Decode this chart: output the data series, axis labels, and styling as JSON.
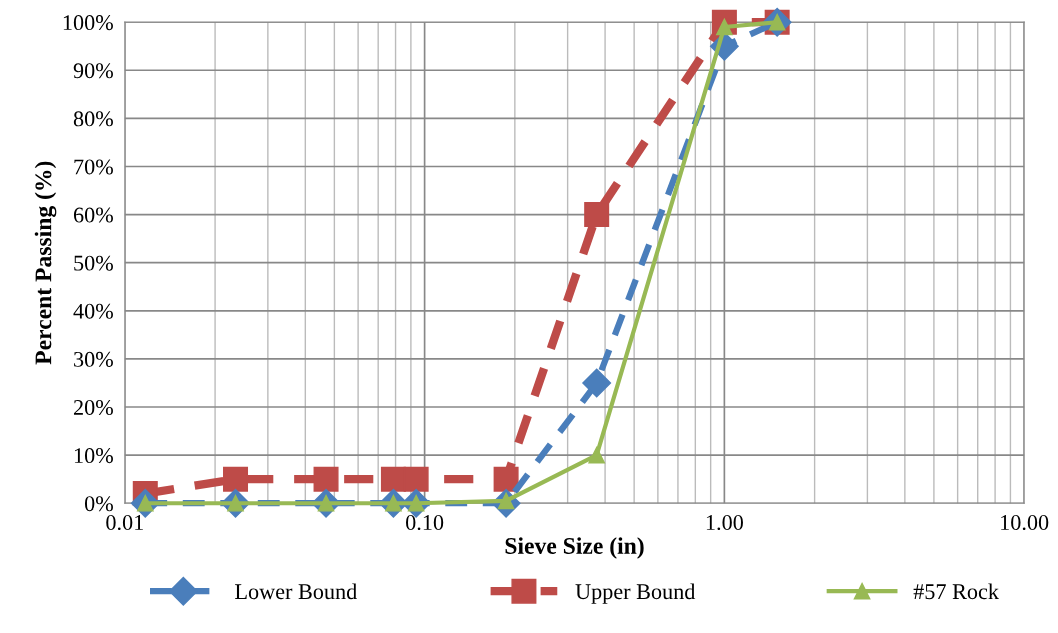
{
  "chart_data": {
    "type": "line",
    "xlabel": "Sieve Size (in)",
    "ylabel": "Percent Passing (%)",
    "log": "x",
    "x": [
      0.0117,
      0.0234,
      0.0469,
      0.0787,
      0.0937,
      0.187,
      0.375,
      1.0,
      1.5
    ],
    "xlim": [
      0.01,
      10
    ],
    "xticks": [
      {
        "value": 0.01,
        "label": "0.01"
      },
      {
        "value": 0.1,
        "label": "0.10"
      },
      {
        "value": 1,
        "label": "1.00"
      },
      {
        "value": 10,
        "label": "10.00"
      }
    ],
    "ylim": [
      0,
      100
    ],
    "yticks": [
      {
        "value": 0,
        "label": "0%"
      },
      {
        "value": 10,
        "label": "10%"
      },
      {
        "value": 20,
        "label": "20%"
      },
      {
        "value": 30,
        "label": "30%"
      },
      {
        "value": 40,
        "label": "40%"
      },
      {
        "value": 50,
        "label": "50%"
      },
      {
        "value": 60,
        "label": "60%"
      },
      {
        "value": 70,
        "label": "70%"
      },
      {
        "value": 80,
        "label": "80%"
      },
      {
        "value": 90,
        "label": "90%"
      },
      {
        "value": 100,
        "label": "100%"
      }
    ],
    "grid": true,
    "legend": "bottom",
    "series": [
      {
        "name": "Lower Bound",
        "color": "#4a7ebb",
        "marker": "diamond",
        "line_style": "dashed",
        "values": [
          0,
          0,
          0,
          0,
          0,
          0,
          25,
          95,
          100
        ]
      },
      {
        "name": "Upper Bound",
        "color": "#be4b48",
        "marker": "square",
        "line_style": "dashed",
        "values": [
          2,
          5,
          5,
          5,
          5,
          5,
          60,
          100,
          100
        ]
      },
      {
        "name": "#57 Rock",
        "color": "#98b954",
        "marker": "triangle",
        "line_style": "solid",
        "values": [
          0,
          0,
          0,
          0,
          0,
          0.5,
          10,
          99,
          100
        ]
      }
    ]
  }
}
